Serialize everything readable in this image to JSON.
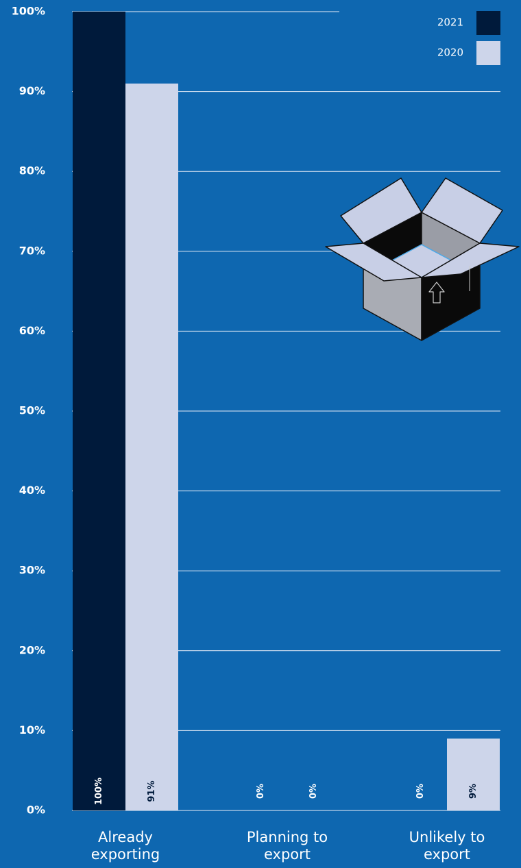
{
  "chart_data": {
    "type": "bar",
    "categories": [
      "Already exporting",
      "Planning to export",
      "Unlikely to export"
    ],
    "series": [
      {
        "name": "2021",
        "color": "#001a3b",
        "values": [
          100,
          0,
          0
        ],
        "value_labels": [
          "100%",
          "0%",
          "0%"
        ]
      },
      {
        "name": "2020",
        "color": "#cdd5ea",
        "values": [
          91,
          0,
          9
        ],
        "value_labels": [
          "91%",
          "0%",
          "9%"
        ]
      }
    ],
    "ylim": [
      0,
      100
    ],
    "yticks": [
      {
        "value": 0,
        "label": "0%"
      },
      {
        "value": 10,
        "label": "10%"
      },
      {
        "value": 20,
        "label": "20%"
      },
      {
        "value": 30,
        "label": "30%"
      },
      {
        "value": 40,
        "label": "40%"
      },
      {
        "value": 50,
        "label": "50%"
      },
      {
        "value": 60,
        "label": "60%"
      },
      {
        "value": 70,
        "label": "70%"
      },
      {
        "value": 80,
        "label": "80%"
      },
      {
        "value": 90,
        "label": "90%"
      },
      {
        "value": 100,
        "label": "100%"
      }
    ],
    "grid": true,
    "legend": "top-right"
  }
}
